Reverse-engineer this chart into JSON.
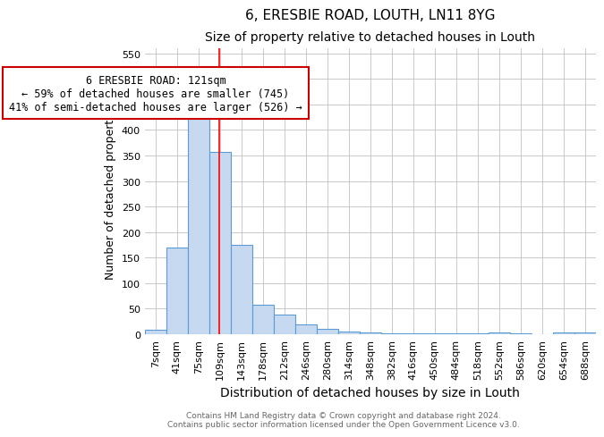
{
  "title_line1": "6, ERESBIE ROAD, LOUTH, LN11 8YG",
  "title_line2": "Size of property relative to detached houses in Louth",
  "xlabel": "Distribution of detached houses by size in Louth",
  "ylabel": "Number of detached properties",
  "bar_labels": [
    "7sqm",
    "41sqm",
    "75sqm",
    "109sqm",
    "143sqm",
    "178sqm",
    "212sqm",
    "246sqm",
    "280sqm",
    "314sqm",
    "348sqm",
    "382sqm",
    "416sqm",
    "450sqm",
    "484sqm",
    "518sqm",
    "552sqm",
    "586sqm",
    "620sqm",
    "654sqm",
    "688sqm"
  ],
  "bar_values": [
    8,
    170,
    430,
    357,
    175,
    57,
    38,
    20,
    10,
    5,
    3,
    2,
    2,
    1,
    1,
    1,
    4,
    1,
    0,
    4,
    4
  ],
  "bar_color": "#c6d9f0",
  "bar_edge_color": "#5b9bd5",
  "bar_width": 1.0,
  "ylim": [
    0,
    560
  ],
  "yticks": [
    0,
    50,
    100,
    150,
    200,
    250,
    300,
    350,
    400,
    450,
    500,
    550
  ],
  "red_line_x": 3.47,
  "annotation_text": "6 ERESBIE ROAD: 121sqm\n← 59% of detached houses are smaller (745)\n41% of semi-detached houses are larger (526) →",
  "annotation_box_color": "#ffffff",
  "annotation_box_edge": "#cc0000",
  "footnote": "Contains HM Land Registry data © Crown copyright and database right 2024.\nContains public sector information licensed under the Open Government Licence v3.0.",
  "background_color": "#ffffff",
  "grid_color": "#c0c0c0",
  "title_fontsize": 11,
  "subtitle_fontsize": 10,
  "tick_fontsize": 8,
  "ylabel_fontsize": 9,
  "xlabel_fontsize": 10,
  "annotation_fontsize": 8.5
}
